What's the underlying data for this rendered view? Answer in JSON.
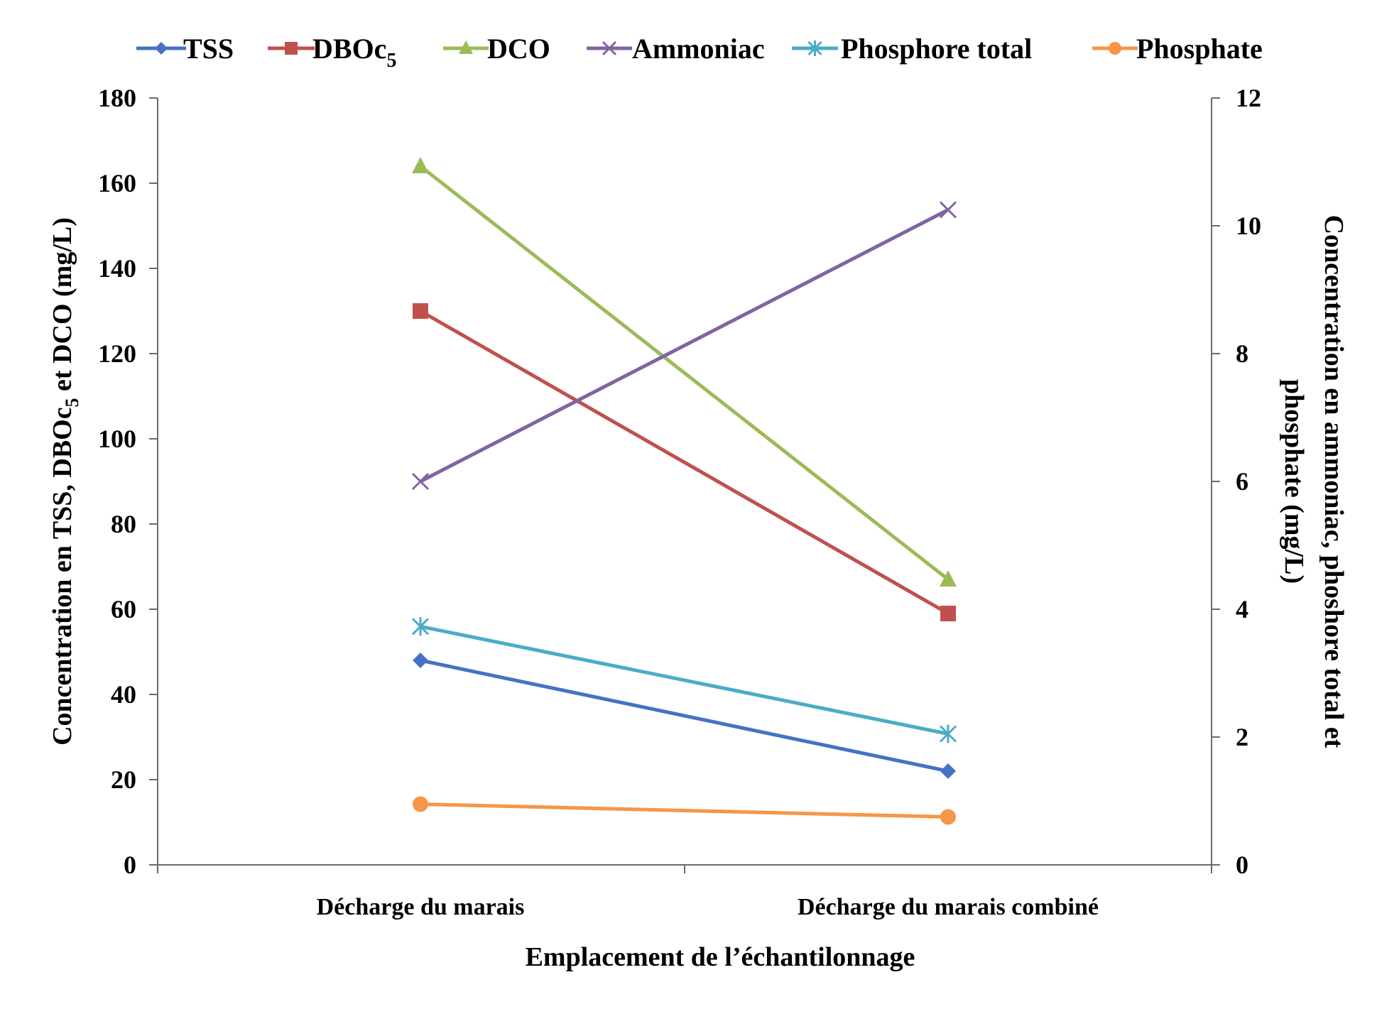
{
  "chart_data": {
    "type": "line",
    "categories": [
      "Décharge du marais",
      "Décharge du marais combiné"
    ],
    "xlabel": "Emplacement de l’échantilonnage",
    "ylabel_left": {
      "text": "Concentration en TSS, DBOc",
      "sub": "5",
      "tail": " et DCO  (mg/L)"
    },
    "ylabel_right": [
      "Concentration en ammoniac, phoshore total et",
      "phosphate (mg/L)"
    ],
    "y_left": {
      "min": 0,
      "max": 180,
      "ticks": [
        "0",
        "20",
        "40",
        "60",
        "80",
        "100",
        "120",
        "140",
        "160",
        "180"
      ]
    },
    "y_right": {
      "min": 0,
      "max": 12,
      "ticks": [
        "0",
        "2",
        "4",
        "6",
        "8",
        "10",
        "12"
      ]
    },
    "legend_position": "top",
    "grid": false,
    "series": [
      {
        "name": "TSS",
        "sub": "",
        "axis": "left",
        "marker": "diamond",
        "color": "#4472C4",
        "values": [
          48,
          22
        ]
      },
      {
        "name": "DBOc",
        "sub": "5",
        "axis": "left",
        "marker": "square",
        "color": "#C0504D",
        "values": [
          130,
          59
        ]
      },
      {
        "name": "DCO",
        "sub": "",
        "axis": "left",
        "marker": "triangle",
        "color": "#9BBB59",
        "values": [
          164,
          67
        ]
      },
      {
        "name": "Ammoniac",
        "sub": "",
        "axis": "right",
        "marker": "x",
        "color": "#8064A2",
        "values": [
          6.0,
          10.25
        ]
      },
      {
        "name": "Phosphore total",
        "sub": "",
        "axis": "right",
        "marker": "star",
        "color": "#4BACC6",
        "values": [
          3.73,
          2.05
        ]
      },
      {
        "name": "Phosphate",
        "sub": "",
        "axis": "right",
        "marker": "circle",
        "color": "#F79646",
        "values": [
          0.95,
          0.75
        ]
      }
    ]
  }
}
